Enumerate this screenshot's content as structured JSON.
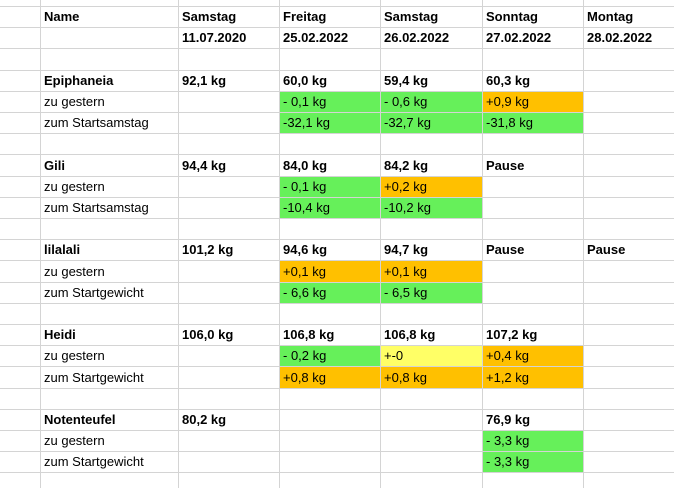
{
  "header": {
    "row1": [
      "Name",
      "Samstag",
      "Freitag",
      "Samstag",
      "Sonntag",
      "Montag"
    ],
    "row2": [
      "",
      "11.07.2020",
      "25.02.2022",
      "26.02.2022",
      "27.02.2022",
      "28.02.2022"
    ]
  },
  "colors": {
    "green": "#66f05a",
    "orange": "#ffc000",
    "yellow": "#ffff66"
  },
  "blocks": [
    {
      "rows": [
        {
          "label": "Epiphaneia",
          "bold": true,
          "cells": [
            {
              "v": "92,1 kg"
            },
            {
              "v": "60,0 kg"
            },
            {
              "v": "59,4 kg"
            },
            {
              "v": "60,3 kg"
            },
            {
              "v": ""
            }
          ]
        },
        {
          "label": "zu gestern",
          "bold": false,
          "cells": [
            {
              "v": ""
            },
            {
              "v": "- 0,1 kg",
              "c": "green"
            },
            {
              "v": "- 0,6 kg",
              "c": "green"
            },
            {
              "v": "+0,9 kg",
              "c": "orange"
            },
            {
              "v": ""
            }
          ]
        },
        {
          "label": "zum Startsamstag",
          "bold": false,
          "cells": [
            {
              "v": ""
            },
            {
              "v": "-32,1 kg",
              "c": "green"
            },
            {
              "v": "-32,7 kg",
              "c": "green"
            },
            {
              "v": "-31,8 kg",
              "c": "green"
            },
            {
              "v": ""
            }
          ]
        }
      ]
    },
    {
      "rows": [
        {
          "label": "Gili",
          "bold": true,
          "cells": [
            {
              "v": "94,4 kg"
            },
            {
              "v": "84,0 kg"
            },
            {
              "v": "84,2 kg"
            },
            {
              "v": "Pause"
            },
            {
              "v": ""
            }
          ]
        },
        {
          "label": "zu gestern",
          "bold": false,
          "cells": [
            {
              "v": ""
            },
            {
              "v": "- 0,1 kg",
              "c": "green"
            },
            {
              "v": "+0,2 kg",
              "c": "orange"
            },
            {
              "v": ""
            },
            {
              "v": ""
            }
          ]
        },
        {
          "label": "zum Startsamstag",
          "bold": false,
          "cells": [
            {
              "v": ""
            },
            {
              "v": "-10,4 kg",
              "c": "green"
            },
            {
              "v": "-10,2 kg",
              "c": "green"
            },
            {
              "v": ""
            },
            {
              "v": ""
            }
          ]
        }
      ]
    },
    {
      "rows": [
        {
          "label": "lilalali",
          "bold": true,
          "cells": [
            {
              "v": "101,2 kg"
            },
            {
              "v": "94,6 kg"
            },
            {
              "v": "94,7 kg"
            },
            {
              "v": "Pause"
            },
            {
              "v": "Pause"
            }
          ]
        },
        {
          "label": "zu gestern",
          "bold": false,
          "cells": [
            {
              "v": ""
            },
            {
              "v": "+0,1 kg",
              "c": "orange"
            },
            {
              "v": "+0,1 kg",
              "c": "orange"
            },
            {
              "v": ""
            },
            {
              "v": ""
            }
          ]
        },
        {
          "label": "zum Startgewicht",
          "bold": false,
          "cells": [
            {
              "v": ""
            },
            {
              "v": "- 6,6 kg",
              "c": "green"
            },
            {
              "v": "- 6,5 kg",
              "c": "green"
            },
            {
              "v": ""
            },
            {
              "v": ""
            }
          ]
        }
      ]
    },
    {
      "rows": [
        {
          "label": "Heidi",
          "bold": true,
          "cells": [
            {
              "v": "106,0 kg"
            },
            {
              "v": "106,8 kg"
            },
            {
              "v": "106,8 kg"
            },
            {
              "v": "107,2 kg"
            },
            {
              "v": ""
            }
          ]
        },
        {
          "label": "zu gestern",
          "bold": false,
          "cells": [
            {
              "v": ""
            },
            {
              "v": "- 0,2 kg",
              "c": "green"
            },
            {
              "v": "+-0",
              "c": "yellow"
            },
            {
              "v": "+0,4 kg",
              "c": "orange"
            },
            {
              "v": ""
            }
          ]
        },
        {
          "label": "zum Startgewicht",
          "bold": false,
          "cells": [
            {
              "v": ""
            },
            {
              "v": "+0,8 kg",
              "c": "orange"
            },
            {
              "v": "+0,8 kg",
              "c": "orange"
            },
            {
              "v": "+1,2 kg",
              "c": "orange"
            },
            {
              "v": ""
            }
          ]
        }
      ]
    },
    {
      "rows": [
        {
          "label": "Notenteufel",
          "bold": true,
          "cells": [
            {
              "v": "80,2 kg"
            },
            {
              "v": ""
            },
            {
              "v": ""
            },
            {
              "v": "76,9 kg"
            },
            {
              "v": ""
            }
          ]
        },
        {
          "label": "zu gestern",
          "bold": false,
          "cells": [
            {
              "v": ""
            },
            {
              "v": ""
            },
            {
              "v": ""
            },
            {
              "v": "- 3,3 kg",
              "c": "green"
            },
            {
              "v": ""
            }
          ]
        },
        {
          "label": "zum Startgewicht",
          "bold": false,
          "cells": [
            {
              "v": ""
            },
            {
              "v": ""
            },
            {
              "v": ""
            },
            {
              "v": "- 3,3 kg",
              "c": "green"
            },
            {
              "v": ""
            }
          ]
        }
      ]
    }
  ]
}
